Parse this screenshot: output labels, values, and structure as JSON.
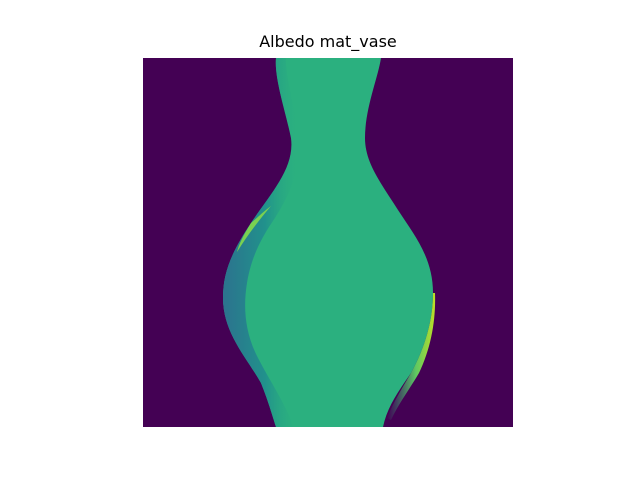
{
  "chart_data": {
    "type": "heatmap",
    "title": "Albedo mat_vase",
    "colormap": "viridis",
    "axes_visible": false,
    "colors": {
      "background": "#440154",
      "body": "#2bb07f",
      "body_shade": "#25a485",
      "left_rim_dark": "#2c728e",
      "left_rim_mid": "#21918c",
      "left_highlight": "#7ad151",
      "right_highlight": "#bddf26",
      "right_rim": "#5ec962"
    }
  }
}
